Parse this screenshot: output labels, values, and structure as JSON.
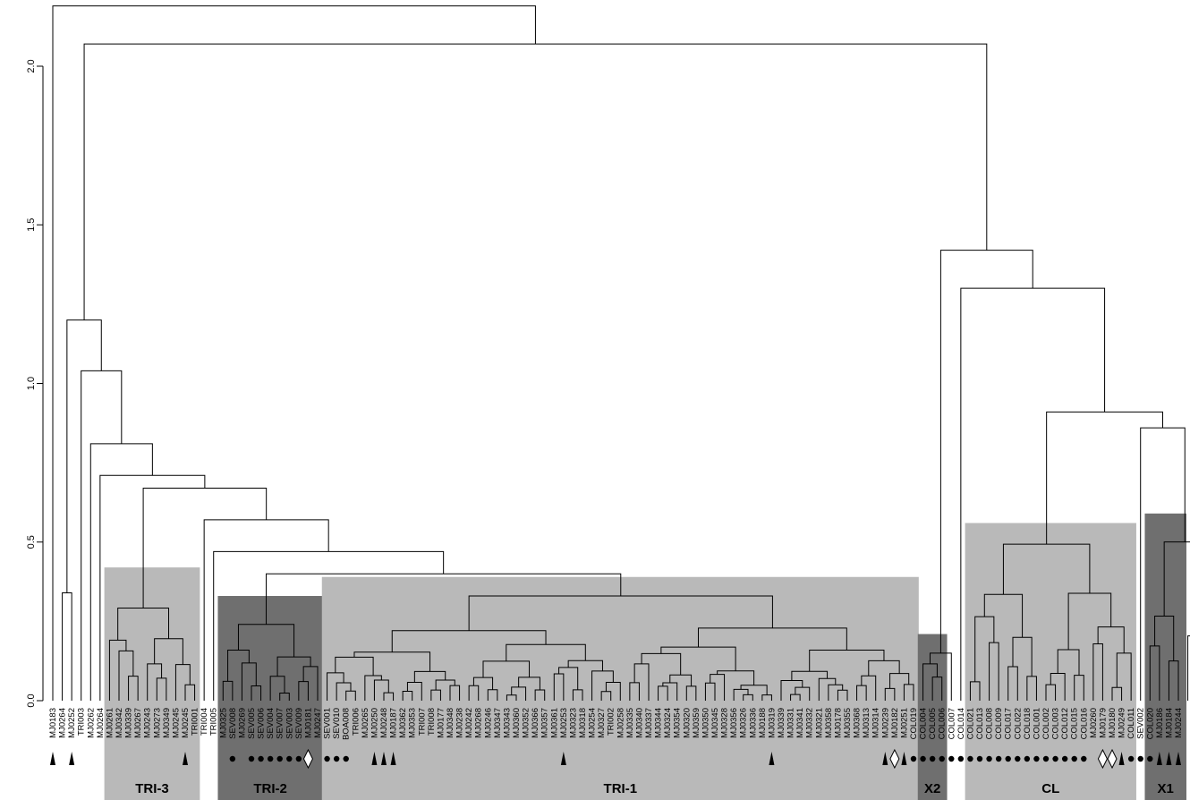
{
  "chart_data": {
    "type": "dendrogram",
    "ylim": [
      0,
      2.2
    ],
    "y_ticks": [
      "0.0",
      "0.5",
      "1.0",
      "1.5",
      "2.0"
    ],
    "y_tick_values": [
      0,
      0.5,
      1.0,
      1.5,
      2.0
    ],
    "groups": [
      {
        "name": "TRI-3",
        "shade": "light",
        "first": 6,
        "last": 15,
        "height": 0.42
      },
      {
        "name": "TRI-2",
        "shade": "dark",
        "first": 18,
        "last": 28,
        "height": 0.33
      },
      {
        "name": "TRI-1",
        "shade": "light",
        "first": 29,
        "last": 91,
        "height": 0.39
      },
      {
        "name": "X2",
        "shade": "dark",
        "first": 92,
        "last": 94,
        "height": 0.21
      },
      {
        "name": "CL",
        "shade": "light",
        "first": 97,
        "last": 114,
        "height": 0.56
      },
      {
        "name": "X1",
        "shade": "dark",
        "first": 116,
        "last": 124,
        "height": 0.59
      }
    ],
    "leaves": [
      {
        "label": "MJ0183",
        "mark": "triangle"
      },
      {
        "label": "MJ0264",
        "mark": ""
      },
      {
        "label": "MJ0252",
        "mark": "triangle"
      },
      {
        "label": "TRI003",
        "mark": ""
      },
      {
        "label": "MJ0262",
        "mark": ""
      },
      {
        "label": "MJ0264",
        "mark": ""
      },
      {
        "label": "MJ0261",
        "mark": ""
      },
      {
        "label": "MJ0342",
        "mark": ""
      },
      {
        "label": "MJ0339",
        "mark": ""
      },
      {
        "label": "MJ0267",
        "mark": ""
      },
      {
        "label": "MJ0243",
        "mark": ""
      },
      {
        "label": "MJ0273",
        "mark": ""
      },
      {
        "label": "MJ0349",
        "mark": ""
      },
      {
        "label": "MJ0245",
        "mark": ""
      },
      {
        "label": "MJ0245",
        "mark": "triangle"
      },
      {
        "label": "TRI001",
        "mark": ""
      },
      {
        "label": "TRI004",
        "mark": ""
      },
      {
        "label": "TRI005",
        "mark": ""
      },
      {
        "label": "MJ0325",
        "mark": ""
      },
      {
        "label": "SEV008",
        "mark": "dot"
      },
      {
        "label": "MJ0269",
        "mark": ""
      },
      {
        "label": "SEV005",
        "mark": "dot"
      },
      {
        "label": "SEV006",
        "mark": "dot"
      },
      {
        "label": "SEV004",
        "mark": "dot"
      },
      {
        "label": "SEV007",
        "mark": "dot"
      },
      {
        "label": "SEV003",
        "mark": "dot"
      },
      {
        "label": "SEV009",
        "mark": "dot"
      },
      {
        "label": "MJ0181",
        "mark": "diamond"
      },
      {
        "label": "MJ0247",
        "mark": ""
      },
      {
        "label": "SEV001",
        "mark": "dot"
      },
      {
        "label": "SEV010",
        "mark": "dot"
      },
      {
        "label": "BOA008",
        "mark": "dot"
      },
      {
        "label": "TRI006",
        "mark": ""
      },
      {
        "label": "MJ0265",
        "mark": ""
      },
      {
        "label": "MJ0250",
        "mark": "triangle"
      },
      {
        "label": "MJ0248",
        "mark": "triangle"
      },
      {
        "label": "MJ0187",
        "mark": "triangle"
      },
      {
        "label": "MJ0362",
        "mark": ""
      },
      {
        "label": "MJ0353",
        "mark": ""
      },
      {
        "label": "TRI007",
        "mark": ""
      },
      {
        "label": "TRI008",
        "mark": ""
      },
      {
        "label": "MJ0177",
        "mark": ""
      },
      {
        "label": "MJ0348",
        "mark": ""
      },
      {
        "label": "MJ0238",
        "mark": ""
      },
      {
        "label": "MJ0242",
        "mark": ""
      },
      {
        "label": "MJ0268",
        "mark": ""
      },
      {
        "label": "MJ0246",
        "mark": ""
      },
      {
        "label": "MJ0347",
        "mark": ""
      },
      {
        "label": "MJ0343",
        "mark": ""
      },
      {
        "label": "MJ0360",
        "mark": ""
      },
      {
        "label": "MJ0352",
        "mark": ""
      },
      {
        "label": "MJ0366",
        "mark": ""
      },
      {
        "label": "MJ0357",
        "mark": ""
      },
      {
        "label": "MJ0361",
        "mark": ""
      },
      {
        "label": "MJ0253",
        "mark": "triangle"
      },
      {
        "label": "MJ0323",
        "mark": ""
      },
      {
        "label": "MJ0318",
        "mark": ""
      },
      {
        "label": "MJ0254",
        "mark": ""
      },
      {
        "label": "MJ0327",
        "mark": ""
      },
      {
        "label": "TRI002",
        "mark": ""
      },
      {
        "label": "MJ0258",
        "mark": ""
      },
      {
        "label": "MJ0335",
        "mark": ""
      },
      {
        "label": "MJ0340",
        "mark": ""
      },
      {
        "label": "MJ0337",
        "mark": ""
      },
      {
        "label": "MJ0344",
        "mark": ""
      },
      {
        "label": "MJ0324",
        "mark": ""
      },
      {
        "label": "MJ0354",
        "mark": ""
      },
      {
        "label": "MJ0320",
        "mark": ""
      },
      {
        "label": "MJ0359",
        "mark": ""
      },
      {
        "label": "MJ0350",
        "mark": ""
      },
      {
        "label": "MJ0345",
        "mark": ""
      },
      {
        "label": "MJ0328",
        "mark": ""
      },
      {
        "label": "MJ0356",
        "mark": ""
      },
      {
        "label": "MJ0326",
        "mark": ""
      },
      {
        "label": "MJ0336",
        "mark": ""
      },
      {
        "label": "MJ0188",
        "mark": ""
      },
      {
        "label": "MJ0319",
        "mark": "triangle"
      },
      {
        "label": "MJ0339",
        "mark": ""
      },
      {
        "label": "MJ0331",
        "mark": ""
      },
      {
        "label": "MJ0341",
        "mark": ""
      },
      {
        "label": "MJ0332",
        "mark": ""
      },
      {
        "label": "MJ0321",
        "mark": ""
      },
      {
        "label": "MJ0358",
        "mark": ""
      },
      {
        "label": "MJ0178",
        "mark": ""
      },
      {
        "label": "MJ0355",
        "mark": ""
      },
      {
        "label": "MJ0368",
        "mark": ""
      },
      {
        "label": "MJ0313",
        "mark": ""
      },
      {
        "label": "MJ0314",
        "mark": ""
      },
      {
        "label": "MJ0239",
        "mark": "triangle"
      },
      {
        "label": "MJ0182",
        "mark": "diamond"
      },
      {
        "label": "MJ0251",
        "mark": "triangle"
      },
      {
        "label": "COL019",
        "mark": "dot"
      },
      {
        "label": "COL004",
        "mark": "dot"
      },
      {
        "label": "COL005",
        "mark": "dot"
      },
      {
        "label": "COL006",
        "mark": "dot"
      },
      {
        "label": "COL007",
        "mark": "dot"
      },
      {
        "label": "COL014",
        "mark": "dot"
      },
      {
        "label": "COL021",
        "mark": "dot"
      },
      {
        "label": "COL013",
        "mark": "dot"
      },
      {
        "label": "COL008",
        "mark": "dot"
      },
      {
        "label": "COL009",
        "mark": "dot"
      },
      {
        "label": "COL017",
        "mark": "dot"
      },
      {
        "label": "COL022",
        "mark": "dot"
      },
      {
        "label": "COL018",
        "mark": "dot"
      },
      {
        "label": "COL001",
        "mark": "dot"
      },
      {
        "label": "COL002",
        "mark": "dot"
      },
      {
        "label": "COL003",
        "mark": "dot"
      },
      {
        "label": "COL012",
        "mark": "dot"
      },
      {
        "label": "COL015",
        "mark": "dot"
      },
      {
        "label": "COL016",
        "mark": "dot"
      },
      {
        "label": "MJ0260",
        "mark": ""
      },
      {
        "label": "MJ0179",
        "mark": "diamond"
      },
      {
        "label": "MJ0180",
        "mark": "diamond"
      },
      {
        "label": "MJ0249",
        "mark": "triangle"
      },
      {
        "label": "COL011",
        "mark": "dot"
      },
      {
        "label": "SEV002",
        "mark": "dot"
      },
      {
        "label": "COL020",
        "mark": "dot"
      },
      {
        "label": "MJ0186",
        "mark": "triangle"
      },
      {
        "label": "MJ0184",
        "mark": "triangle"
      },
      {
        "label": "MJ0244",
        "mark": "triangle"
      }
    ]
  }
}
